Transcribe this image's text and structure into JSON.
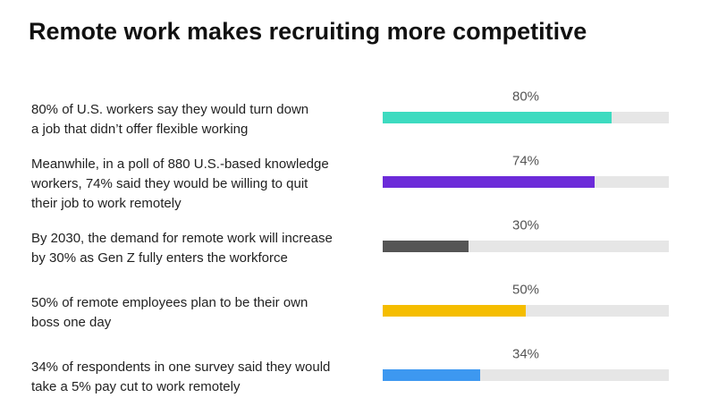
{
  "chart_data": {
    "type": "bar",
    "orientation": "horizontal",
    "title": "Remote work makes recruiting more competitive",
    "categories": [
      "80% of U.S. workers say they would turn down\na job that didn’t offer flexible working",
      "Meanwhile, in a poll of 880 U.S.-based knowledge\nworkers, 74% said they would be willing to quit\ntheir job to work remotely",
      "By 2030, the demand for remote work will increase\nby 30% as Gen Z fully enters the workforce",
      "50% of remote employees plan to be their own\nboss one day",
      "34% of respondents in one survey said they would\ntake a 5% pay cut to work remotely"
    ],
    "values": [
      80,
      74,
      30,
      50,
      34
    ],
    "value_labels": [
      "80%",
      "74%",
      "30%",
      "50%",
      "34%"
    ],
    "colors": [
      "#3ddbc0",
      "#6c2bd9",
      "#555555",
      "#f5bd00",
      "#3d98f0"
    ],
    "track_color": "#e6e6e6",
    "xlim": [
      0,
      100
    ]
  }
}
